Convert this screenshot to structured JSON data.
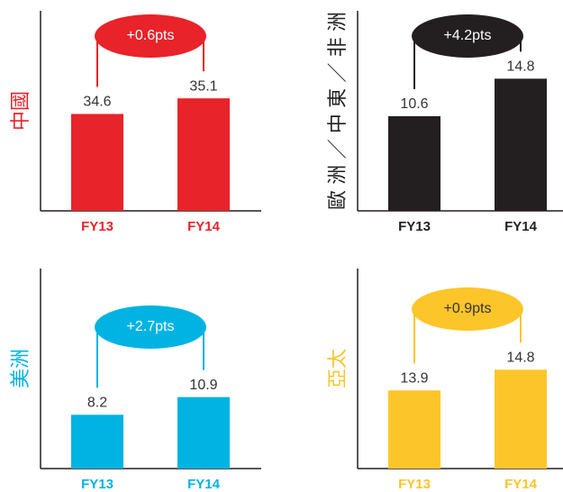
{
  "chart_data": [
    {
      "type": "bar",
      "ylabel": "中國",
      "categories": [
        "FY13",
        "FY14"
      ],
      "values": [
        34.6,
        35.1
      ],
      "annotation": "+0.6pts",
      "color": "#e8232a",
      "label_color": "#e8232a",
      "ylim": [
        31.5,
        37.9
      ]
    },
    {
      "type": "bar",
      "ylabel": "歐洲／中東／非洲",
      "categories": [
        "FY13",
        "FY14"
      ],
      "values": [
        10.6,
        14.8
      ],
      "annotation": "+4.2pts",
      "color": "#231f20",
      "label_color": "#231f20",
      "ylim": [
        0,
        22.4
      ]
    },
    {
      "type": "bar",
      "ylabel": "美洲",
      "categories": [
        "FY13",
        "FY14"
      ],
      "values": [
        8.2,
        10.9
      ],
      "annotation": "+2.7pts",
      "color": "#00b3e3",
      "label_color": "#00b3e3",
      "ylim": [
        0,
        30.5
      ]
    },
    {
      "type": "bar",
      "ylabel": "亞太",
      "categories": [
        "FY13",
        "FY14"
      ],
      "values": [
        13.9,
        14.8
      ],
      "annotation": "+0.9pts",
      "color": "#fcc52a",
      "label_color": "#fcc52a",
      "ylim": [
        10.5,
        19.2
      ]
    }
  ]
}
